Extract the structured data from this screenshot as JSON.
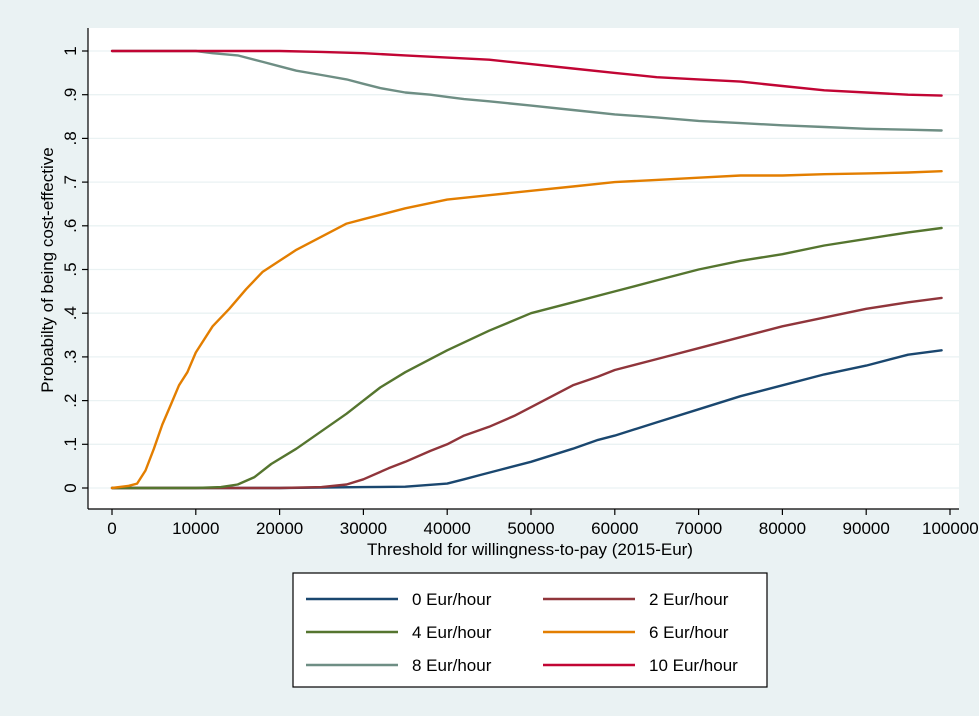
{
  "chart_data": {
    "type": "line",
    "xlabel": "Threshold for willingness-to-pay (2015-Eur)",
    "ylabel": "Probabilty of being cost-effective",
    "xlim": [
      0,
      100000
    ],
    "ylim": [
      0,
      1
    ],
    "xticks": [
      0,
      10000,
      20000,
      30000,
      40000,
      50000,
      60000,
      70000,
      80000,
      90000,
      100000
    ],
    "xtick_labels": [
      "0",
      "10000",
      "20000",
      "30000",
      "40000",
      "50000",
      "60000",
      "70000",
      "80000",
      "90000",
      "100000"
    ],
    "yticks": [
      0,
      0.1,
      0.2,
      0.3,
      0.4,
      0.5,
      0.6,
      0.7,
      0.8,
      0.9,
      1
    ],
    "ytick_labels": [
      "0",
      ".1",
      ".2",
      ".3",
      ".4",
      ".5",
      ".6",
      ".7",
      ".8",
      ".9",
      "1"
    ],
    "grid": "horizontal",
    "legend_position": "bottom",
    "background_color": "#eaf2f3",
    "plot_background_color": "#ffffff",
    "series": [
      {
        "name": "0 Eur/hour",
        "color": "#1a476f",
        "x": [
          0,
          5000,
          10000,
          20000,
          30000,
          35000,
          40000,
          42000,
          44000,
          46000,
          50000,
          55000,
          58000,
          60000,
          65000,
          70000,
          75000,
          80000,
          85000,
          90000,
          95000,
          99000
        ],
        "y": [
          0,
          0,
          0,
          0,
          0.002,
          0.003,
          0.01,
          0.02,
          0.03,
          0.04,
          0.06,
          0.09,
          0.11,
          0.12,
          0.15,
          0.18,
          0.21,
          0.235,
          0.26,
          0.28,
          0.305,
          0.315
        ]
      },
      {
        "name": "2 Eur/hour",
        "color": "#90353b",
        "x": [
          0,
          10000,
          20000,
          25000,
          28000,
          30000,
          33000,
          35000,
          38000,
          40000,
          42000,
          45000,
          48000,
          50000,
          55000,
          58000,
          60000,
          65000,
          70000,
          75000,
          80000,
          85000,
          90000,
          95000,
          99000
        ],
        "y": [
          0,
          0,
          0,
          0.002,
          0.008,
          0.02,
          0.045,
          0.06,
          0.085,
          0.1,
          0.12,
          0.14,
          0.165,
          0.185,
          0.235,
          0.255,
          0.27,
          0.295,
          0.32,
          0.345,
          0.37,
          0.39,
          0.41,
          0.425,
          0.435
        ]
      },
      {
        "name": "4 Eur/hour",
        "color": "#55752f",
        "x": [
          0,
          10000,
          13000,
          15000,
          17000,
          19000,
          22000,
          25000,
          28000,
          30000,
          32000,
          35000,
          38000,
          40000,
          45000,
          50000,
          55000,
          60000,
          65000,
          70000,
          75000,
          80000,
          85000,
          90000,
          95000,
          99000
        ],
        "y": [
          0,
          0,
          0.002,
          0.008,
          0.025,
          0.055,
          0.09,
          0.13,
          0.17,
          0.2,
          0.23,
          0.265,
          0.295,
          0.315,
          0.36,
          0.4,
          0.425,
          0.45,
          0.475,
          0.5,
          0.52,
          0.535,
          0.555,
          0.57,
          0.585,
          0.595
        ]
      },
      {
        "name": "6 Eur/hour",
        "color": "#e37e00",
        "x": [
          0,
          2000,
          3000,
          4000,
          5000,
          6000,
          7000,
          8000,
          9000,
          10000,
          12000,
          14000,
          16000,
          18000,
          20000,
          22000,
          25000,
          28000,
          30000,
          33000,
          35000,
          40000,
          45000,
          50000,
          55000,
          60000,
          65000,
          70000,
          75000,
          80000,
          85000,
          90000,
          95000,
          99000
        ],
        "y": [
          0,
          0.005,
          0.01,
          0.04,
          0.09,
          0.145,
          0.19,
          0.235,
          0.265,
          0.31,
          0.37,
          0.41,
          0.455,
          0.495,
          0.52,
          0.545,
          0.575,
          0.605,
          0.615,
          0.63,
          0.64,
          0.66,
          0.67,
          0.68,
          0.69,
          0.7,
          0.705,
          0.71,
          0.715,
          0.715,
          0.718,
          0.72,
          0.722,
          0.725
        ]
      },
      {
        "name": "8 Eur/hour",
        "color": "#6e8e84",
        "x": [
          0,
          10000,
          12000,
          15000,
          18000,
          20000,
          22000,
          25000,
          28000,
          30000,
          32000,
          35000,
          38000,
          40000,
          42000,
          45000,
          50000,
          55000,
          60000,
          65000,
          70000,
          75000,
          80000,
          85000,
          90000,
          95000,
          99000
        ],
        "y": [
          1,
          1,
          0.995,
          0.99,
          0.975,
          0.965,
          0.955,
          0.945,
          0.935,
          0.925,
          0.915,
          0.905,
          0.9,
          0.895,
          0.89,
          0.885,
          0.875,
          0.865,
          0.855,
          0.848,
          0.84,
          0.835,
          0.83,
          0.826,
          0.822,
          0.82,
          0.818
        ]
      },
      {
        "name": "10 Eur/hour",
        "color": "#c10534",
        "x": [
          0,
          10000,
          20000,
          25000,
          30000,
          35000,
          40000,
          45000,
          50000,
          55000,
          60000,
          65000,
          70000,
          75000,
          80000,
          85000,
          90000,
          95000,
          99000
        ],
        "y": [
          1,
          1,
          1,
          0.998,
          0.995,
          0.99,
          0.985,
          0.98,
          0.97,
          0.96,
          0.95,
          0.94,
          0.935,
          0.93,
          0.92,
          0.91,
          0.905,
          0.9,
          0.898
        ]
      }
    ]
  }
}
